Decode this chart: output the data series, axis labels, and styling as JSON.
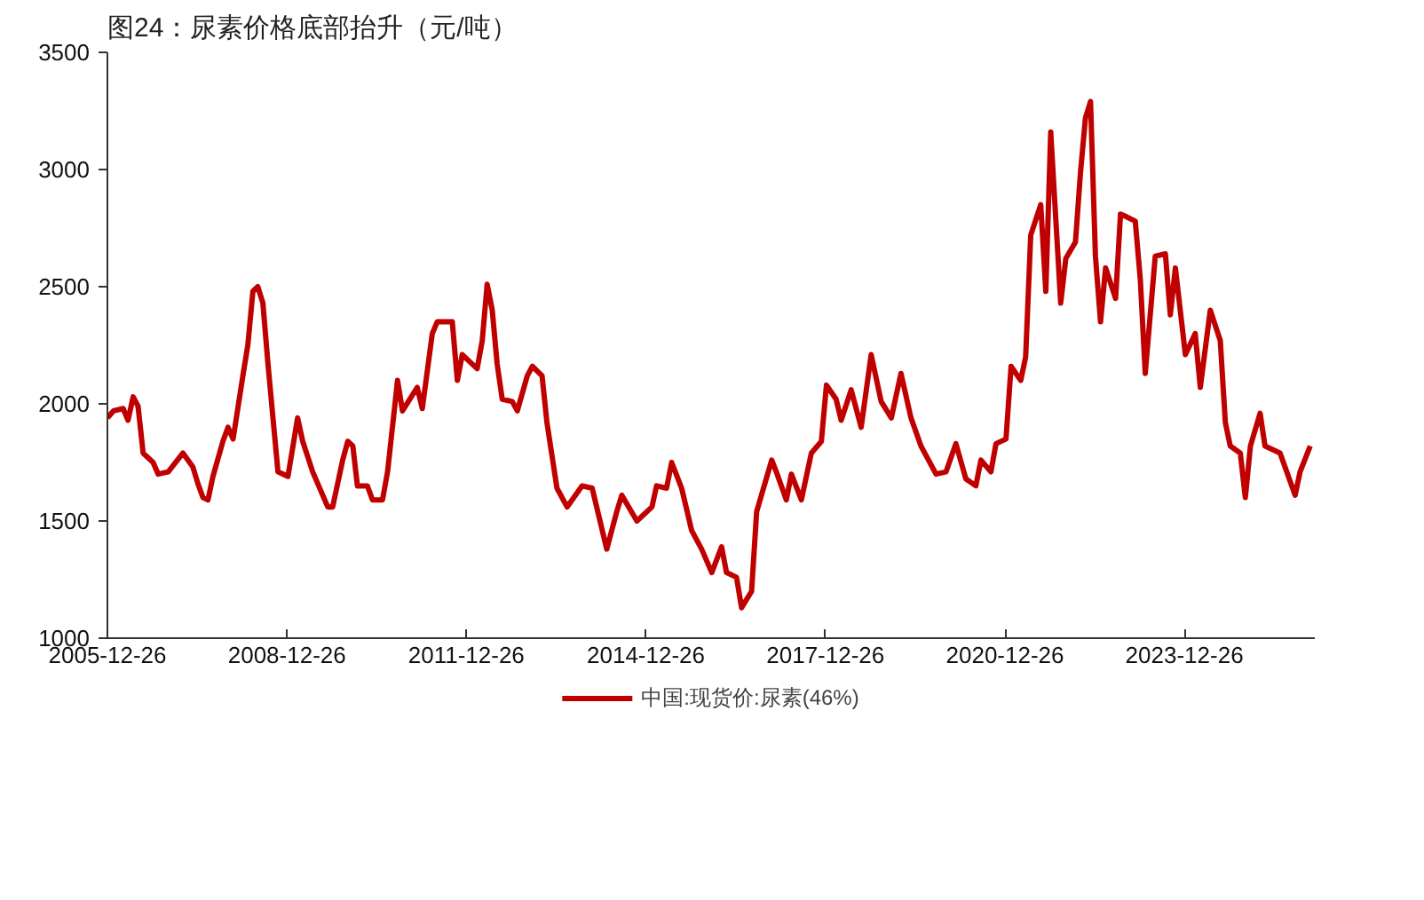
{
  "chart_data": {
    "type": "line",
    "title": "图24：尿素价格底部抬升（元/吨）",
    "x": [
      "2005-12-26",
      "2006-02",
      "2006-04",
      "2006-05",
      "2006-06",
      "2006-07",
      "2006-08",
      "2006-10",
      "2006-11",
      "2007-01",
      "2007-04",
      "2007-06",
      "2007-07",
      "2007-08",
      "2007-09",
      "2007-10",
      "2007-12",
      "2008-01",
      "2008-02",
      "2008-04",
      "2008-05",
      "2008-06",
      "2008-07",
      "2008-08",
      "2008-09",
      "2008-11",
      "2009-01",
      "2009-03",
      "2009-04",
      "2009-06",
      "2009-09",
      "2009-10",
      "2009-12",
      "2010-01",
      "2010-02",
      "2010-03",
      "2010-05",
      "2010-06",
      "2010-08",
      "2010-09",
      "2010-11",
      "2010-12",
      "2011-03",
      "2011-04",
      "2011-06",
      "2011-07",
      "2011-10",
      "2011-11",
      "2011-12",
      "2012-03",
      "2012-04",
      "2012-05",
      "2012-06",
      "2012-07",
      "2012-08",
      "2012-10",
      "2012-11",
      "2013-01",
      "2013-02",
      "2013-04",
      "2013-05",
      "2013-07",
      "2013-09",
      "2013-12",
      "2014-02",
      "2014-05",
      "2014-07",
      "2014-08",
      "2014-11",
      "2015-02",
      "2015-03",
      "2015-05",
      "2015-06",
      "2015-08",
      "2015-10",
      "2015-12",
      "2016-02",
      "2016-04",
      "2016-05",
      "2016-07",
      "2016-08",
      "2016-10",
      "2016-11",
      "2017-02",
      "2017-03",
      "2017-05",
      "2017-06",
      "2017-08",
      "2017-10",
      "2017-12",
      "2018-01",
      "2018-03",
      "2018-04",
      "2018-06",
      "2018-08",
      "2018-10",
      "2018-12",
      "2019-02",
      "2019-04",
      "2019-06",
      "2019-08",
      "2019-11",
      "2020-01",
      "2020-03",
      "2020-05",
      "2020-07",
      "2020-08",
      "2020-10",
      "2020-11",
      "2021-01",
      "2021-02",
      "2021-04",
      "2021-05",
      "2021-06",
      "2021-08",
      "2021-09",
      "2021-10",
      "2021-12",
      "2022-01",
      "2022-03",
      "2022-04",
      "2022-05",
      "2022-06",
      "2022-07",
      "2022-08",
      "2022-09",
      "2022-11",
      "2022-12",
      "2023-01",
      "2023-03",
      "2023-04",
      "2023-05",
      "2023-07",
      "2023-09",
      "2023-10",
      "2023-11",
      "2024-01",
      "2024-03",
      "2024-04",
      "2024-06",
      "2024-08",
      "2024-09",
      "2024-10",
      "2024-12",
      "2025-01",
      "2025-02",
      "2025-04",
      "2025-05",
      "2025-08",
      "2025-11",
      "2025-12",
      "2026-02"
    ],
    "series": [
      {
        "name": "中国:现货价:尿素(46%)",
        "color": "#c00000",
        "values": [
          1940,
          1970,
          1980,
          1930,
          2030,
          1990,
          1790,
          1750,
          1700,
          1710,
          1790,
          1730,
          1660,
          1600,
          1590,
          1690,
          1840,
          1900,
          1850,
          2120,
          2250,
          2480,
          2500,
          2430,
          2170,
          1710,
          1690,
          1940,
          1840,
          1710,
          1560,
          1560,
          1760,
          1840,
          1820,
          1650,
          1650,
          1590,
          1590,
          1710,
          2100,
          1970,
          2070,
          1980,
          2300,
          2350,
          2350,
          2100,
          2210,
          2150,
          2270,
          2510,
          2400,
          2170,
          2020,
          2010,
          1970,
          2120,
          2160,
          2120,
          1920,
          1640,
          1560,
          1650,
          1640,
          1380,
          1540,
          1610,
          1500,
          1560,
          1650,
          1640,
          1750,
          1640,
          1460,
          1380,
          1280,
          1390,
          1280,
          1260,
          1130,
          1200,
          1540,
          1760,
          1710,
          1590,
          1700,
          1590,
          1790,
          1840,
          2080,
          2020,
          1930,
          2060,
          1900,
          2210,
          2010,
          1940,
          2130,
          1940,
          1820,
          1700,
          1710,
          1830,
          1680,
          1650,
          1760,
          1710,
          1830,
          1850,
          2160,
          2100,
          2200,
          2720,
          2850,
          2480,
          3160,
          2430,
          2620,
          2690,
          2990,
          3220,
          3290,
          2630,
          2350,
          2580,
          2450,
          2810,
          2800,
          2780,
          2530,
          2130,
          2630,
          2640,
          2380,
          2580,
          2210,
          2300,
          2070,
          2400,
          2270,
          1920,
          1820,
          1790,
          1600,
          1820,
          1960,
          1820,
          1790,
          1610,
          1710,
          1820
        ]
      }
    ],
    "xlim": [
      "2005-12-26",
      "2026-03"
    ],
    "xticks": [
      "2005-12-26",
      "2008-12-26",
      "2011-12-26",
      "2014-12-26",
      "2017-12-26",
      "2020-12-26",
      "2023-12-26"
    ],
    "ylim": [
      1000,
      3500
    ],
    "yticks": [
      1000,
      1500,
      2000,
      2500,
      3000,
      3500
    ],
    "grid": false,
    "legend": "bottom",
    "marker": "none",
    "line_style": "solid"
  }
}
